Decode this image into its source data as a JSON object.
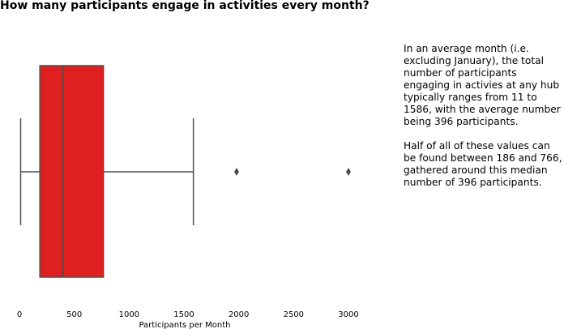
{
  "chart_data": {
    "type": "boxplot",
    "title": "How many participants engage in activities every month?",
    "xlabel": "Participants per Month",
    "ylabel": "",
    "xlim": [
      -80,
      3200
    ],
    "xticks": [
      0,
      500,
      1000,
      1500,
      2000,
      2500,
      3000
    ],
    "orientation": "horizontal",
    "box": {
      "whisker_low": 11,
      "q1": 186,
      "median": 396,
      "q3": 766,
      "whisker_high": 1586,
      "outliers": [
        1980,
        3000
      ]
    },
    "colors": {
      "box_fill": "#e02020",
      "line": "#4d4d4d"
    },
    "grid": false,
    "legend": "none"
  },
  "annotation": {
    "paragraphs": [
      "In an average month (i.e. excluding January), the total number of participants engaging in activies at any hub typically ranges from 11 to 1586, with the average number being 396 participants.",
      "Half of all of these values can be found between 186 and 766, gathered around this median number of 396 participants."
    ]
  }
}
